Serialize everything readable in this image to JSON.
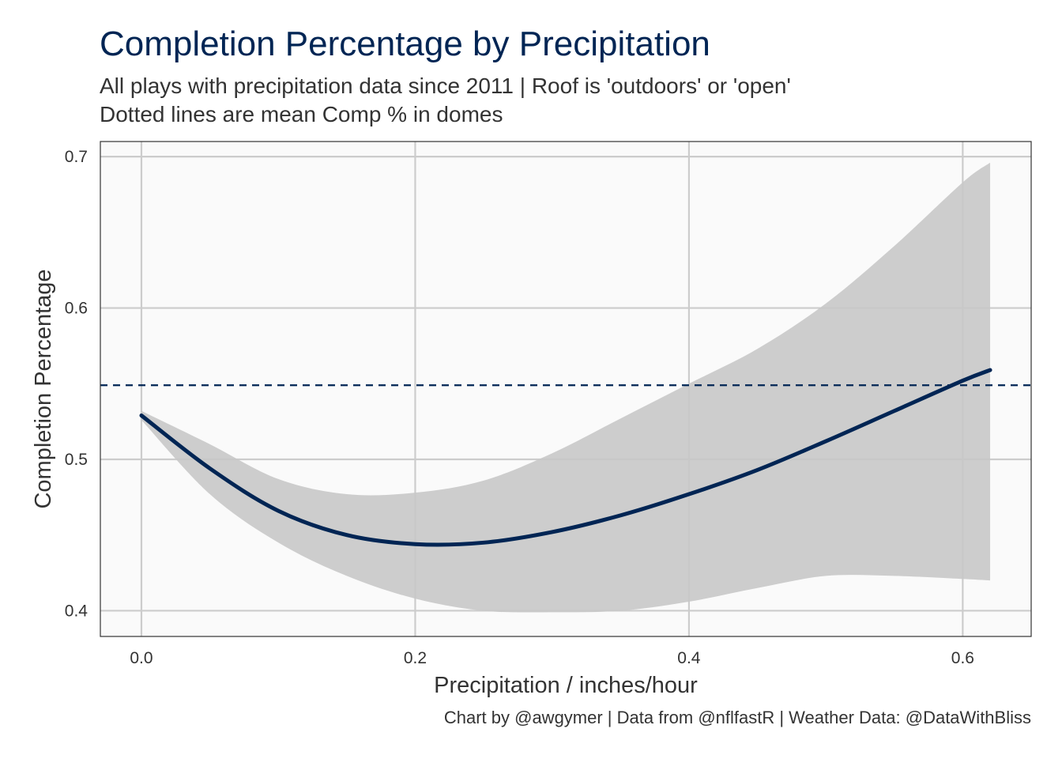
{
  "title": "Completion Percentage by Precipitation",
  "subtitle_lines": [
    "All plays with precipitation data since 2011 | Roof is 'outdoors' or 'open'",
    "Dotted lines are mean Comp % in domes"
  ],
  "caption": "Chart by @awgymer | Data from @nflfastR | Weather Data: @DataWithBliss",
  "colors": {
    "line": "#002554",
    "band": "#c8c8c8",
    "panel": "#fafafa",
    "grid": "#cccccc",
    "reference": "#002554"
  },
  "chart_data": {
    "type": "line",
    "xlabel": "Precipitation / inches/hour",
    "ylabel": "Completion Percentage",
    "xlim": [
      -0.03,
      0.65
    ],
    "ylim": [
      0.383,
      0.71
    ],
    "x_ticks": [
      0.0,
      0.2,
      0.4,
      0.6
    ],
    "x_tick_labels": [
      "0.0",
      "0.2",
      "0.4",
      "0.6"
    ],
    "y_ticks": [
      0.4,
      0.5,
      0.6,
      0.7
    ],
    "y_tick_labels": [
      "0.4",
      "0.5",
      "0.6",
      "0.7"
    ],
    "grid": true,
    "series": [
      {
        "type": "smooth",
        "x": [
          0.0,
          0.05,
          0.1,
          0.15,
          0.2,
          0.25,
          0.3,
          0.35,
          0.4,
          0.45,
          0.5,
          0.55,
          0.6,
          0.62
        ],
        "y": [
          0.529,
          0.494,
          0.466,
          0.45,
          0.444,
          0.445,
          0.452,
          0.463,
          0.477,
          0.493,
          0.512,
          0.532,
          0.552,
          0.559
        ],
        "ymin": [
          0.526,
          0.477,
          0.445,
          0.423,
          0.408,
          0.4,
          0.399,
          0.4,
          0.406,
          0.415,
          0.423,
          0.423,
          0.421,
          0.42
        ],
        "ymax": [
          0.532,
          0.51,
          0.487,
          0.477,
          0.478,
          0.486,
          0.504,
          0.527,
          0.55,
          0.573,
          0.603,
          0.641,
          0.683,
          0.696
        ]
      }
    ],
    "reference_lines": [
      {
        "axis": "y",
        "value": 0.549,
        "style": "dashed"
      }
    ]
  }
}
